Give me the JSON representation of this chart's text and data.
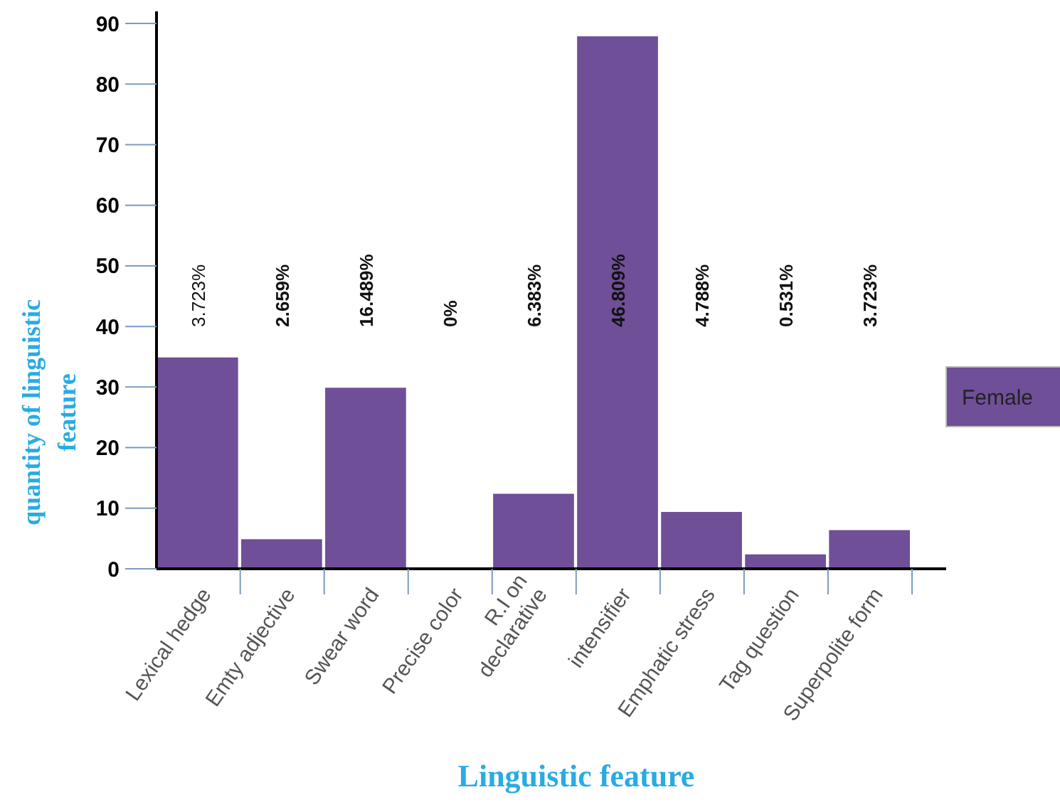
{
  "chart_data": {
    "type": "bar",
    "xlabel": "Linguistic feature",
    "ylabel": "quantity of linguistic feature",
    "categories": [
      "Lexical hedge",
      "Emty adjective",
      "Swear word",
      "Precise color",
      "R.I on\ndeclarative",
      "intensifier",
      "Emphatic stress",
      "Tag question",
      "Superpolite form"
    ],
    "series": [
      {
        "name": "Female",
        "color": "#6f4f98",
        "values": [
          35,
          5,
          30,
          0,
          12.5,
          88,
          9.5,
          2.5,
          6.5
        ]
      }
    ],
    "annotations": [
      "3.723%",
      "2.659%",
      "16.489%",
      "0%",
      "6.383%",
      "46.809%",
      "4.788%",
      "0.531%",
      "3.723%"
    ],
    "ylim": [
      0,
      92
    ],
    "yticks": [
      0,
      10,
      20,
      30,
      40,
      50,
      60,
      70,
      80,
      90
    ],
    "legend": "right",
    "grid": false
  }
}
